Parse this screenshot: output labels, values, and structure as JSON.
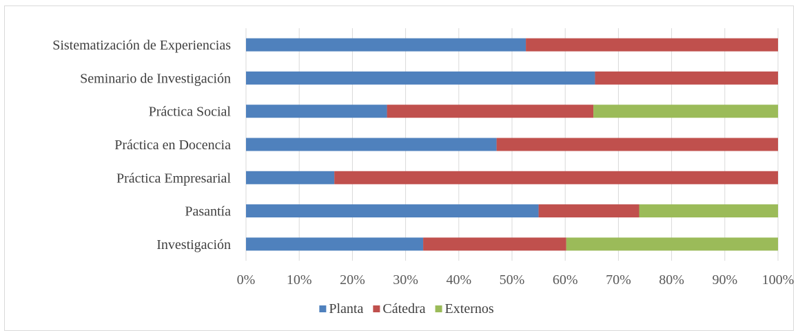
{
  "chart_data": {
    "type": "bar",
    "orientation": "horizontal",
    "stacked": "percent",
    "categories": [
      "Sistematización de Experiencias",
      "Seminario de Investigación",
      "Práctica Social",
      "Práctica en Docencia",
      "Práctica Empresarial",
      "Pasantía",
      "Investigación"
    ],
    "series": [
      {
        "name": "Planta",
        "color": "#4f81bd",
        "values": [
          52.6,
          65.6,
          26.5,
          47.1,
          16.6,
          55.0,
          33.3
        ]
      },
      {
        "name": "Cátedra",
        "color": "#c0504d",
        "values": [
          47.4,
          34.4,
          38.8,
          52.9,
          83.4,
          18.9,
          26.9
        ]
      },
      {
        "name": "Externos",
        "color": "#9bbb59",
        "values": [
          0,
          0,
          34.7,
          0,
          0,
          26.1,
          39.8
        ]
      }
    ],
    "xlim": [
      0,
      100
    ],
    "xticks": [
      "0%",
      "10%",
      "20%",
      "30%",
      "40%",
      "50%",
      "60%",
      "70%",
      "80%",
      "90%",
      "100%"
    ],
    "grid": true,
    "legend_position": "bottom"
  }
}
